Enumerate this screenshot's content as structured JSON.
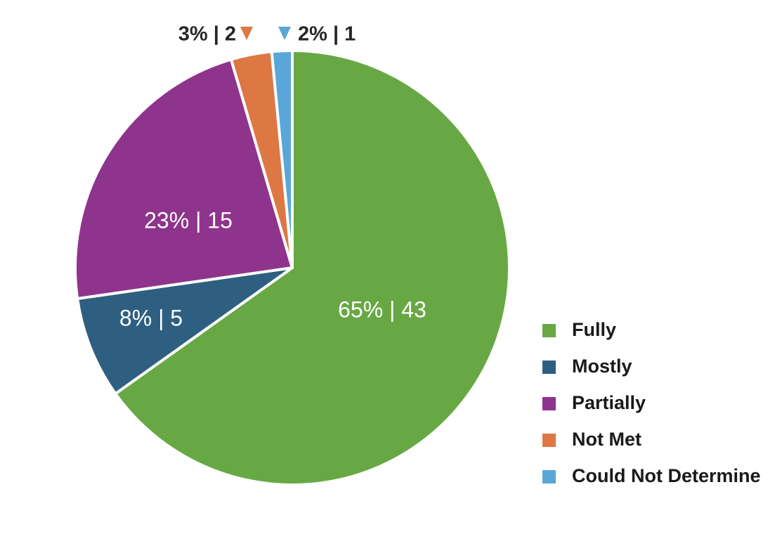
{
  "chart_data": {
    "type": "pie",
    "title": "",
    "start_angle_deg": 0,
    "direction": "clockwise",
    "slices": [
      {
        "label": "Fully",
        "percent": 65,
        "count": 43,
        "color": "#67a844",
        "label_position": "inside"
      },
      {
        "label": "Mostly",
        "percent": 8,
        "count": 5,
        "color": "#2e5f80",
        "label_position": "inside"
      },
      {
        "label": "Partially",
        "percent": 23,
        "count": 15,
        "color": "#8f348c",
        "label_position": "inside"
      },
      {
        "label": "Not Met",
        "percent": 3,
        "count": 2,
        "color": "#dd7743",
        "label_position": "outside"
      },
      {
        "label": "Could Not Determine",
        "percent": 2,
        "count": 1,
        "color": "#5aa6d8",
        "label_position": "outside"
      }
    ],
    "data_labels": {
      "fully": "65% | 43",
      "mostly": "8% | 5",
      "partially": "23% | 15",
      "not_met": "3% | 2",
      "could_not_determine": "2% | 1"
    },
    "legend": {
      "placement": "bottom-right",
      "entries": [
        "Fully",
        "Mostly",
        "Partially",
        "Not Met",
        "Could Not Determine"
      ]
    }
  }
}
